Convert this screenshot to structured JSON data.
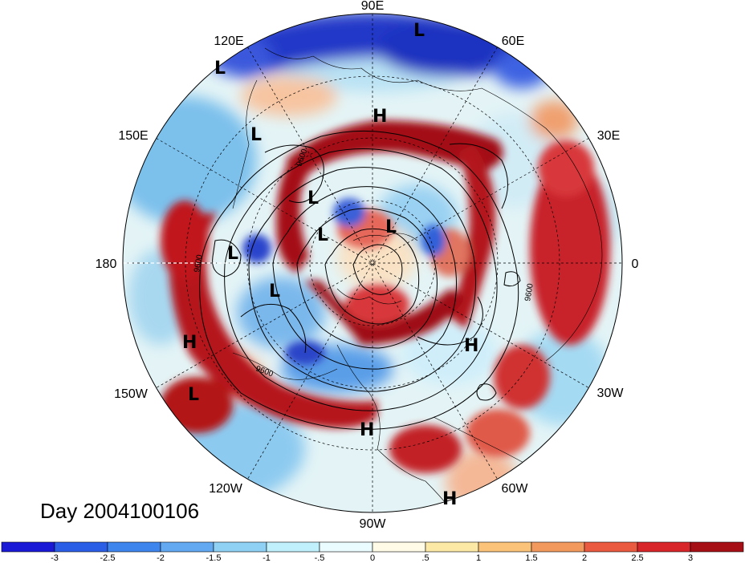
{
  "map": {
    "projection": "north-polar-stereographic",
    "longitude_labels": [
      {
        "id": "lon-90e",
        "text": "90E"
      },
      {
        "id": "lon-60e",
        "text": "60E"
      },
      {
        "id": "lon-30e",
        "text": "30E"
      },
      {
        "id": "lon-0",
        "text": "0"
      },
      {
        "id": "lon-30w",
        "text": "30W"
      },
      {
        "id": "lon-60w",
        "text": "60W"
      },
      {
        "id": "lon-90w",
        "text": "90W"
      },
      {
        "id": "lon-120w",
        "text": "120W"
      },
      {
        "id": "lon-150w",
        "text": "150W"
      },
      {
        "id": "lon-180",
        "text": "180"
      },
      {
        "id": "lon-150e",
        "text": "150E"
      },
      {
        "id": "lon-120e",
        "text": "120E"
      }
    ],
    "pressure_centers": [
      {
        "type": "L",
        "label": "L"
      },
      {
        "type": "L",
        "label": "L"
      },
      {
        "type": "H",
        "label": "H"
      },
      {
        "type": "L",
        "label": "L"
      },
      {
        "type": "L",
        "label": "L"
      },
      {
        "type": "L",
        "label": "L"
      },
      {
        "type": "L",
        "label": "L"
      },
      {
        "type": "L",
        "label": "L"
      },
      {
        "type": "L",
        "label": "L"
      },
      {
        "type": "H",
        "label": "H"
      },
      {
        "type": "H",
        "label": "H"
      },
      {
        "type": "L",
        "label": "L"
      },
      {
        "type": "H",
        "label": "H"
      },
      {
        "type": "H",
        "label": "H"
      }
    ],
    "contour_labels": [
      "9600",
      "9600",
      "9600",
      "9600"
    ],
    "anomaly_colors": {
      "deep_red": "#a50f15",
      "red": "#e03a35",
      "orange": "#f4a582",
      "cream": "#fdf5d0",
      "light_blue": "#bfe6f6",
      "blue": "#4aa3e8",
      "deep_blue": "#1e32c8"
    }
  },
  "colorbar": {
    "colors": [
      "#1a1ad6",
      "#2a5ee6",
      "#3e86ee",
      "#62a9f2",
      "#8fd0f5",
      "#bff0fb",
      "#eafcff",
      "#fffbe6",
      "#fde9a6",
      "#fbc37a",
      "#f29a5e",
      "#ea5a40",
      "#d8252a",
      "#a50f15"
    ],
    "tick_labels": [
      "-3",
      "-2.5",
      "-2",
      "-1.5",
      "-1",
      "-.5",
      "0",
      ".5",
      "1",
      "1.5",
      "2",
      "2.5",
      "3"
    ]
  },
  "day_label": "Day 2004100106"
}
